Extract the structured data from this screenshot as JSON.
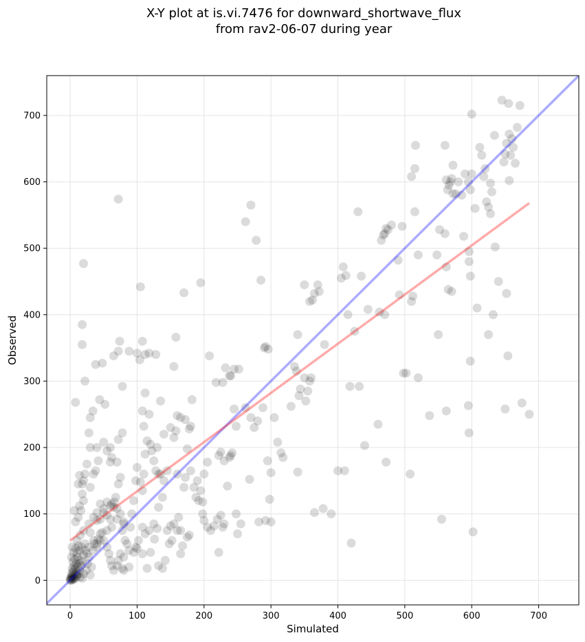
{
  "chart_data": {
    "type": "scatter",
    "title_line1": "X-Y plot at is.vi.7476 for downward_shortwave_flux",
    "title_line2": "from rav2-06-07 during year",
    "xlabel": "Simulated",
    "ylabel": "Observed",
    "xlim": [
      -35,
      760
    ],
    "ylim": [
      -37,
      760
    ],
    "xticks": [
      0,
      100,
      200,
      300,
      400,
      500,
      600,
      700
    ],
    "yticks": [
      0,
      100,
      200,
      300,
      400,
      500,
      600,
      700
    ],
    "grid": true,
    "colors": {
      "points": "#000000",
      "one_to_one": "#0000ff",
      "regression": "#ff0000"
    },
    "one_to_one_line": [
      [
        -35,
        -35
      ],
      [
        760,
        760
      ]
    ],
    "regression_line": [
      [
        0,
        60
      ],
      [
        686,
        568
      ]
    ],
    "points": [
      [
        0,
        0
      ],
      [
        1,
        1
      ],
      [
        2,
        0
      ],
      [
        0,
        2
      ],
      [
        3,
        3
      ],
      [
        1,
        4
      ],
      [
        2,
        5
      ],
      [
        4,
        2
      ],
      [
        5,
        1
      ],
      [
        3,
        7
      ],
      [
        6,
        4
      ],
      [
        2,
        10
      ],
      [
        4,
        12
      ],
      [
        7,
        8
      ],
      [
        8,
        3
      ],
      [
        10,
        6
      ],
      [
        5,
        15
      ],
      [
        9,
        12
      ],
      [
        12,
        10
      ],
      [
        3,
        18
      ],
      [
        6,
        22
      ],
      [
        8,
        18
      ],
      [
        11,
        20
      ],
      [
        14,
        15
      ],
      [
        4,
        28
      ],
      [
        9,
        25
      ],
      [
        13,
        26
      ],
      [
        16,
        22
      ],
      [
        2,
        35
      ],
      [
        7,
        32
      ],
      [
        11,
        35
      ],
      [
        15,
        30
      ],
      [
        18,
        28
      ],
      [
        5,
        42
      ],
      [
        10,
        40
      ],
      [
        14,
        45
      ],
      [
        20,
        38
      ],
      [
        3,
        50
      ],
      [
        8,
        48
      ],
      [
        12,
        52
      ],
      [
        17,
        50
      ],
      [
        22,
        45
      ],
      [
        25,
        40
      ],
      [
        28,
        35
      ],
      [
        10,
        8
      ],
      [
        15,
        5
      ],
      [
        20,
        10
      ],
      [
        24,
        15
      ],
      [
        18,
        3
      ],
      [
        30,
        8
      ],
      [
        26,
        25
      ],
      [
        32,
        20
      ],
      [
        22,
        55
      ],
      [
        28,
        50
      ],
      [
        34,
        45
      ],
      [
        36,
        55
      ],
      [
        40,
        50
      ],
      [
        45,
        60
      ],
      [
        10,
        60
      ],
      [
        15,
        68
      ],
      [
        20,
        75
      ],
      [
        8,
        88
      ],
      [
        12,
        95
      ],
      [
        16,
        105
      ],
      [
        6,
        105
      ],
      [
        14,
        112
      ],
      [
        20,
        120
      ],
      [
        18,
        130
      ],
      [
        20,
        150
      ],
      [
        22,
        160
      ],
      [
        12,
        145
      ],
      [
        14,
        158
      ],
      [
        18,
        145
      ],
      [
        30,
        140
      ],
      [
        35,
        160
      ],
      [
        25,
        175
      ],
      [
        30,
        200
      ],
      [
        28,
        222
      ],
      [
        30,
        245
      ],
      [
        34,
        255
      ],
      [
        22,
        300
      ],
      [
        18,
        355
      ],
      [
        18,
        385
      ],
      [
        20,
        477
      ],
      [
        8,
        268
      ],
      [
        38,
        325
      ],
      [
        48,
        327
      ],
      [
        44,
        272
      ],
      [
        52,
        265
      ],
      [
        38,
        165
      ],
      [
        42,
        180
      ],
      [
        40,
        200
      ],
      [
        50,
        208
      ],
      [
        55,
        195
      ],
      [
        60,
        200
      ],
      [
        62,
        185
      ],
      [
        60,
        178
      ],
      [
        70,
        178
      ],
      [
        72,
        212
      ],
      [
        78,
        222
      ],
      [
        75,
        155
      ],
      [
        72,
        145
      ],
      [
        68,
        125
      ],
      [
        65,
        110
      ],
      [
        60,
        112
      ],
      [
        55,
        118
      ],
      [
        50,
        102
      ],
      [
        45,
        92
      ],
      [
        40,
        90
      ],
      [
        45,
        70
      ],
      [
        50,
        60
      ],
      [
        55,
        50
      ],
      [
        58,
        40
      ],
      [
        60,
        30
      ],
      [
        62,
        22
      ],
      [
        65,
        15
      ],
      [
        70,
        22
      ],
      [
        72,
        30
      ],
      [
        75,
        40
      ],
      [
        78,
        18
      ],
      [
        80,
        15
      ],
      [
        85,
        55
      ],
      [
        88,
        45
      ],
      [
        90,
        80
      ],
      [
        92,
        100
      ],
      [
        95,
        120
      ],
      [
        98,
        150
      ],
      [
        100,
        170
      ],
      [
        105,
        148
      ],
      [
        108,
        135
      ],
      [
        110,
        160
      ],
      [
        112,
        190
      ],
      [
        115,
        210
      ],
      [
        118,
        250
      ],
      [
        120,
        205
      ],
      [
        122,
        195
      ],
      [
        125,
        180
      ],
      [
        128,
        165
      ],
      [
        130,
        200
      ],
      [
        132,
        160
      ],
      [
        110,
        232
      ],
      [
        112,
        282
      ],
      [
        108,
        255
      ],
      [
        100,
        342
      ],
      [
        104,
        332
      ],
      [
        108,
        360
      ],
      [
        112,
        340
      ],
      [
        118,
        342
      ],
      [
        128,
        340
      ],
      [
        88,
        345
      ],
      [
        72,
        345
      ],
      [
        74,
        360
      ],
      [
        65,
        338
      ],
      [
        78,
        292
      ],
      [
        105,
        442
      ],
      [
        72,
        574
      ],
      [
        95,
        42
      ],
      [
        100,
        48
      ],
      [
        108,
        40
      ],
      [
        115,
        18
      ],
      [
        120,
        42
      ],
      [
        126,
        62
      ],
      [
        130,
        78
      ],
      [
        125,
        85
      ],
      [
        118,
        75
      ],
      [
        112,
        70
      ],
      [
        108,
        80
      ],
      [
        102,
        60
      ],
      [
        98,
        50
      ],
      [
        88,
        20
      ],
      [
        80,
        35
      ],
      [
        82,
        60
      ],
      [
        78,
        75
      ],
      [
        80,
        88
      ],
      [
        70,
        92
      ],
      [
        62,
        80
      ],
      [
        55,
        75
      ],
      [
        48,
        72
      ],
      [
        42,
        62
      ],
      [
        40,
        55
      ],
      [
        35,
        60
      ],
      [
        30,
        72
      ],
      [
        28,
        85
      ],
      [
        35,
        95
      ],
      [
        40,
        102
      ],
      [
        45,
        115
      ],
      [
        50,
        108
      ],
      [
        55,
        98
      ],
      [
        60,
        92
      ],
      [
        62,
        115
      ],
      [
        66,
        118
      ],
      [
        70,
        108
      ],
      [
        75,
        100
      ],
      [
        80,
        85
      ],
      [
        135,
        270
      ],
      [
        140,
        220
      ],
      [
        150,
        230
      ],
      [
        155,
        322
      ],
      [
        158,
        366
      ],
      [
        155,
        215
      ],
      [
        158,
        225
      ],
      [
        160,
        160
      ],
      [
        162,
        95
      ],
      [
        165,
        75
      ],
      [
        168,
        52
      ],
      [
        165,
        40
      ],
      [
        170,
        140
      ],
      [
        172,
        155
      ],
      [
        175,
        198
      ],
      [
        178,
        228
      ],
      [
        180,
        232
      ],
      [
        182,
        272
      ],
      [
        175,
        65
      ],
      [
        178,
        68
      ],
      [
        180,
        165
      ],
      [
        185,
        140
      ],
      [
        190,
        150
      ],
      [
        195,
        135
      ],
      [
        198,
        118
      ],
      [
        200,
        160
      ],
      [
        205,
        178
      ],
      [
        208,
        338
      ],
      [
        195,
        448
      ],
      [
        170,
        433
      ],
      [
        165,
        245
      ],
      [
        172,
        242
      ],
      [
        160,
        248
      ],
      [
        145,
        165
      ],
      [
        140,
        150
      ],
      [
        135,
        160
      ],
      [
        132,
        110
      ],
      [
        138,
        125
      ],
      [
        145,
        75
      ],
      [
        150,
        82
      ],
      [
        155,
        85
      ],
      [
        160,
        75
      ],
      [
        132,
        22
      ],
      [
        138,
        18
      ],
      [
        142,
        30
      ],
      [
        148,
        55
      ],
      [
        152,
        60
      ],
      [
        188,
        125
      ],
      [
        192,
        120
      ],
      [
        198,
        100
      ],
      [
        200,
        90
      ],
      [
        205,
        80
      ],
      [
        210,
        75
      ],
      [
        215,
        82
      ],
      [
        220,
        92
      ],
      [
        225,
        98
      ],
      [
        230,
        85
      ],
      [
        222,
        42
      ],
      [
        228,
        80
      ],
      [
        235,
        142
      ],
      [
        238,
        185
      ],
      [
        240,
        188
      ],
      [
        242,
        192
      ],
      [
        240,
        308
      ],
      [
        245,
        318
      ],
      [
        238,
        308
      ],
      [
        232,
        320
      ],
      [
        228,
        298
      ],
      [
        218,
        298
      ],
      [
        222,
        188
      ],
      [
        225,
        193
      ],
      [
        230,
        180
      ],
      [
        248,
        232
      ],
      [
        252,
        318
      ],
      [
        245,
        258
      ],
      [
        250,
        70
      ],
      [
        248,
        100
      ],
      [
        255,
        85
      ],
      [
        262,
        540
      ],
      [
        270,
        565
      ],
      [
        278,
        512
      ],
      [
        285,
        452
      ],
      [
        262,
        260
      ],
      [
        268,
        152
      ],
      [
        270,
        245
      ],
      [
        275,
        230
      ],
      [
        280,
        240
      ],
      [
        288,
        260
      ],
      [
        290,
        350
      ],
      [
        292,
        352
      ],
      [
        296,
        348
      ],
      [
        298,
        122
      ],
      [
        295,
        180
      ],
      [
        292,
        90
      ],
      [
        300,
        162
      ],
      [
        305,
        245
      ],
      [
        310,
        208
      ],
      [
        315,
        192
      ],
      [
        318,
        185
      ],
      [
        300,
        88
      ],
      [
        282,
        88
      ],
      [
        330,
        262
      ],
      [
        335,
        322
      ],
      [
        338,
        315
      ],
      [
        340,
        370
      ],
      [
        340,
        163
      ],
      [
        342,
        278
      ],
      [
        344,
        288
      ],
      [
        350,
        305
      ],
      [
        352,
        270
      ],
      [
        355,
        285
      ],
      [
        358,
        300
      ],
      [
        360,
        305
      ],
      [
        358,
        420
      ],
      [
        362,
        422
      ],
      [
        365,
        432
      ],
      [
        350,
        445
      ],
      [
        370,
        445
      ],
      [
        372,
        435
      ],
      [
        380,
        355
      ],
      [
        365,
        102
      ],
      [
        378,
        108
      ],
      [
        390,
        100
      ],
      [
        400,
        165
      ],
      [
        405,
        455
      ],
      [
        408,
        472
      ],
      [
        410,
        165
      ],
      [
        412,
        459
      ],
      [
        415,
        400
      ],
      [
        418,
        292
      ],
      [
        420,
        56
      ],
      [
        425,
        375
      ],
      [
        430,
        555
      ],
      [
        432,
        292
      ],
      [
        435,
        458
      ],
      [
        440,
        203
      ],
      [
        445,
        408
      ],
      [
        460,
        235
      ],
      [
        462,
        404
      ],
      [
        465,
        512
      ],
      [
        468,
        520
      ],
      [
        470,
        522
      ],
      [
        472,
        530
      ],
      [
        475,
        528
      ],
      [
        470,
        400
      ],
      [
        472,
        178
      ],
      [
        480,
        535
      ],
      [
        490,
        482
      ],
      [
        492,
        430
      ],
      [
        496,
        533
      ],
      [
        498,
        312
      ],
      [
        502,
        312
      ],
      [
        508,
        160
      ],
      [
        510,
        608
      ],
      [
        512,
        428
      ],
      [
        510,
        420
      ],
      [
        515,
        555
      ],
      [
        515,
        620
      ],
      [
        516,
        655
      ],
      [
        520,
        490
      ],
      [
        520,
        305
      ],
      [
        537,
        248
      ],
      [
        550,
        370
      ],
      [
        548,
        490
      ],
      [
        552,
        528
      ],
      [
        555,
        92
      ],
      [
        560,
        655
      ],
      [
        562,
        603
      ],
      [
        564,
        588
      ],
      [
        566,
        595
      ],
      [
        568,
        600
      ],
      [
        570,
        605
      ],
      [
        572,
        582
      ],
      [
        560,
        522
      ],
      [
        562,
        472
      ],
      [
        565,
        438
      ],
      [
        570,
        435
      ],
      [
        562,
        255
      ],
      [
        572,
        625
      ],
      [
        576,
        582
      ],
      [
        580,
        600
      ],
      [
        585,
        580
      ],
      [
        588,
        518
      ],
      [
        590,
        612
      ],
      [
        595,
        600
      ],
      [
        598,
        588
      ],
      [
        596,
        480
      ],
      [
        596,
        495
      ],
      [
        598,
        458
      ],
      [
        595,
        263
      ],
      [
        596,
        222
      ],
      [
        598,
        330
      ],
      [
        600,
        702
      ],
      [
        600,
        612
      ],
      [
        605,
        560
      ],
      [
        608,
        410
      ],
      [
        612,
        652
      ],
      [
        615,
        640
      ],
      [
        618,
        608
      ],
      [
        620,
        620
      ],
      [
        622,
        570
      ],
      [
        625,
        562
      ],
      [
        628,
        598
      ],
      [
        630,
        585
      ],
      [
        628,
        552
      ],
      [
        625,
        370
      ],
      [
        632,
        400
      ],
      [
        635,
        502
      ],
      [
        634,
        670
      ],
      [
        640,
        450
      ],
      [
        645,
        723
      ],
      [
        648,
        630
      ],
      [
        650,
        642
      ],
      [
        652,
        658
      ],
      [
        655,
        718
      ],
      [
        656,
        672
      ],
      [
        660,
        665
      ],
      [
        658,
        640
      ],
      [
        662,
        652
      ],
      [
        665,
        628
      ],
      [
        668,
        682
      ],
      [
        672,
        715
      ],
      [
        650,
        258
      ],
      [
        652,
        432
      ],
      [
        654,
        338
      ],
      [
        656,
        602
      ],
      [
        675,
        267
      ],
      [
        686,
        250
      ],
      [
        602,
        73
      ]
    ]
  }
}
